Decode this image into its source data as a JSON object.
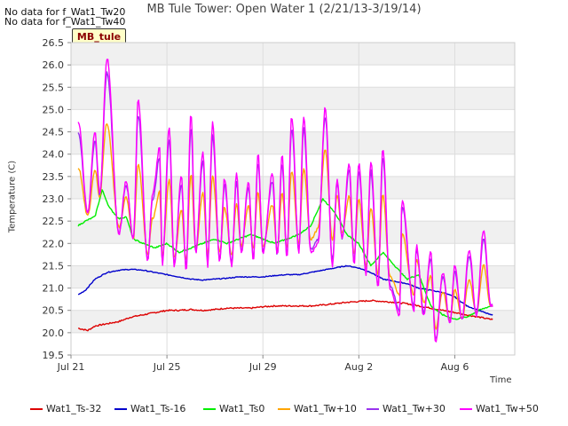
{
  "notices": [
    "No data for f_Wat1_Tw20",
    "No data for f_Wat1_Tw40"
  ],
  "site_tag": "MB_tule",
  "chart_data": {
    "type": "line",
    "title": "MB Tule Tower: Open Water 1 (2/21/13-3/19/14)",
    "xlabel": "Time",
    "ylabel": "Temperature (C)",
    "ylim": [
      19.5,
      26.5
    ],
    "xlim": [
      0,
      18.5
    ],
    "x_unit": "days since Jul 21",
    "y_ticks": [
      "19.5",
      "20.0",
      "20.5",
      "21.0",
      "21.5",
      "22.0",
      "22.5",
      "23.0",
      "23.5",
      "24.0",
      "24.5",
      "25.0",
      "25.5",
      "26.0",
      "26.5"
    ],
    "x_ticks": [
      {
        "label": "Jul 21",
        "day": 0
      },
      {
        "label": "Jul 25",
        "day": 4
      },
      {
        "label": "Jul 29",
        "day": 8
      },
      {
        "label": "Aug 2",
        "day": 12
      },
      {
        "label": "Aug 6",
        "day": 16
      }
    ],
    "grid": true,
    "legend_placement": "bottom",
    "series": [
      {
        "name": "Wat1_Ts-32",
        "color": "#dd0000",
        "values": [
          [
            0.3,
            20.1
          ],
          [
            0.7,
            20.05
          ],
          [
            1,
            20.15
          ],
          [
            1.5,
            20.2
          ],
          [
            2,
            20.25
          ],
          [
            2.5,
            20.35
          ],
          [
            3,
            20.4
          ],
          [
            3.5,
            20.45
          ],
          [
            4,
            20.5
          ],
          [
            4.5,
            20.5
          ],
          [
            5,
            20.52
          ],
          [
            5.5,
            20.5
          ],
          [
            6,
            20.52
          ],
          [
            6.5,
            20.55
          ],
          [
            7,
            20.55
          ],
          [
            7.5,
            20.55
          ],
          [
            8,
            20.58
          ],
          [
            8.5,
            20.6
          ],
          [
            9,
            20.6
          ],
          [
            9.5,
            20.6
          ],
          [
            10,
            20.6
          ],
          [
            10.5,
            20.62
          ],
          [
            11,
            20.65
          ],
          [
            11.5,
            20.68
          ],
          [
            12,
            20.7
          ],
          [
            12.5,
            20.72
          ],
          [
            13,
            20.7
          ],
          [
            13.5,
            20.68
          ],
          [
            14,
            20.65
          ],
          [
            14.5,
            20.6
          ],
          [
            15,
            20.55
          ],
          [
            15.5,
            20.5
          ],
          [
            16,
            20.45
          ],
          [
            16.5,
            20.4
          ],
          [
            17,
            20.35
          ],
          [
            17.5,
            20.3
          ]
        ]
      },
      {
        "name": "Wat1_Ts-16",
        "color": "#0000cc",
        "values": [
          [
            0.3,
            20.85
          ],
          [
            0.6,
            20.95
          ],
          [
            1,
            21.2
          ],
          [
            1.5,
            21.35
          ],
          [
            2,
            21.4
          ],
          [
            2.5,
            21.42
          ],
          [
            3,
            21.4
          ],
          [
            3.5,
            21.35
          ],
          [
            4,
            21.3
          ],
          [
            4.5,
            21.25
          ],
          [
            5,
            21.2
          ],
          [
            5.5,
            21.18
          ],
          [
            6,
            21.2
          ],
          [
            6.5,
            21.22
          ],
          [
            7,
            21.25
          ],
          [
            7.5,
            21.25
          ],
          [
            8,
            21.25
          ],
          [
            8.5,
            21.28
          ],
          [
            9,
            21.3
          ],
          [
            9.5,
            21.3
          ],
          [
            10,
            21.35
          ],
          [
            10.5,
            21.4
          ],
          [
            11,
            21.45
          ],
          [
            11.5,
            21.5
          ],
          [
            12,
            21.45
          ],
          [
            12.5,
            21.35
          ],
          [
            13,
            21.2
          ],
          [
            13.5,
            21.15
          ],
          [
            14,
            21.1
          ],
          [
            14.5,
            21.0
          ],
          [
            15,
            20.95
          ],
          [
            15.5,
            20.9
          ],
          [
            16,
            20.8
          ],
          [
            16.5,
            20.6
          ],
          [
            17,
            20.5
          ],
          [
            17.5,
            20.4
          ]
        ]
      },
      {
        "name": "Wat1_Ts0",
        "color": "#00ee00",
        "values": [
          [
            0.3,
            22.4
          ],
          [
            0.6,
            22.5
          ],
          [
            1,
            22.6
          ],
          [
            1.3,
            23.2
          ],
          [
            1.6,
            22.8
          ],
          [
            2,
            22.55
          ],
          [
            2.3,
            22.6
          ],
          [
            2.6,
            22.1
          ],
          [
            3,
            22.0
          ],
          [
            3.5,
            21.9
          ],
          [
            4,
            22.0
          ],
          [
            4.5,
            21.8
          ],
          [
            5,
            21.9
          ],
          [
            5.5,
            22.0
          ],
          [
            6,
            22.1
          ],
          [
            6.5,
            22.0
          ],
          [
            7,
            22.1
          ],
          [
            7.5,
            22.2
          ],
          [
            8,
            22.1
          ],
          [
            8.5,
            22.0
          ],
          [
            9,
            22.1
          ],
          [
            9.5,
            22.2
          ],
          [
            10,
            22.4
          ],
          [
            10.5,
            23.0
          ],
          [
            11,
            22.7
          ],
          [
            11.5,
            22.2
          ],
          [
            12,
            22.0
          ],
          [
            12.5,
            21.5
          ],
          [
            13,
            21.8
          ],
          [
            13.5,
            21.5
          ],
          [
            14,
            21.2
          ],
          [
            14.5,
            21.3
          ],
          [
            15,
            20.6
          ],
          [
            15.5,
            20.4
          ],
          [
            16,
            20.3
          ],
          [
            16.5,
            20.35
          ],
          [
            17,
            20.5
          ],
          [
            17.5,
            20.6
          ]
        ]
      },
      {
        "name": "Wat1_Tw+10",
        "color": "#ffa500",
        "amp": 0.55
      },
      {
        "name": "Wat1_Tw+30",
        "color": "#9933ee",
        "amp": 0.9
      },
      {
        "name": "Wat1_Tw+50",
        "color": "#ff00ff",
        "amp": 1.0
      }
    ],
    "diurnal_peaks": [
      [
        0.3,
        24.75
      ],
      [
        1,
        24.5
      ],
      [
        1.5,
        26.15
      ],
      [
        2.3,
        23.4
      ],
      [
        2.8,
        25.2
      ],
      [
        3.4,
        23.1
      ],
      [
        3.7,
        24.15
      ],
      [
        4.1,
        24.6
      ],
      [
        4.6,
        23.5
      ],
      [
        5.0,
        24.9
      ],
      [
        5.5,
        24.05
      ],
      [
        5.9,
        24.7
      ],
      [
        6.4,
        23.45
      ],
      [
        6.9,
        23.55
      ],
      [
        7.4,
        23.4
      ],
      [
        7.8,
        24.0
      ],
      [
        8.4,
        23.55
      ],
      [
        8.8,
        24.0
      ],
      [
        9.2,
        24.85
      ],
      [
        9.7,
        24.85
      ],
      [
        10.6,
        25.05
      ],
      [
        11.1,
        23.45
      ],
      [
        11.6,
        23.8
      ],
      [
        12.0,
        23.8
      ],
      [
        12.5,
        23.85
      ],
      [
        13.0,
        24.15
      ],
      [
        13.8,
        23.0
      ],
      [
        14.4,
        21.95
      ],
      [
        15.0,
        21.8
      ],
      [
        15.5,
        21.35
      ],
      [
        16.0,
        21.5
      ],
      [
        16.6,
        21.85
      ],
      [
        17.2,
        22.3
      ]
    ],
    "diurnal_troughs": [
      [
        0.7,
        22.7
      ],
      [
        1.2,
        23.1
      ],
      [
        2.0,
        22.2
      ],
      [
        2.6,
        22.1
      ],
      [
        3.2,
        21.6
      ],
      [
        3.8,
        21.5
      ],
      [
        4.3,
        21.5
      ],
      [
        4.8,
        21.4
      ],
      [
        5.2,
        21.8
      ],
      [
        5.7,
        21.5
      ],
      [
        6.2,
        21.6
      ],
      [
        6.7,
        21.5
      ],
      [
        7.1,
        21.8
      ],
      [
        7.6,
        21.6
      ],
      [
        8.0,
        21.8
      ],
      [
        8.6,
        21.7
      ],
      [
        9.0,
        21.7
      ],
      [
        9.5,
        21.8
      ],
      [
        10.0,
        21.8
      ],
      [
        10.3,
        22.0
      ],
      [
        10.9,
        21.5
      ],
      [
        11.3,
        22.1
      ],
      [
        11.8,
        21.5
      ],
      [
        12.3,
        21.3
      ],
      [
        12.8,
        21.0
      ],
      [
        13.3,
        21.0
      ],
      [
        13.7,
        20.4
      ],
      [
        14.3,
        20.5
      ],
      [
        14.7,
        20.4
      ],
      [
        15.2,
        19.75
      ],
      [
        15.8,
        20.2
      ],
      [
        16.3,
        20.3
      ],
      [
        16.9,
        20.4
      ],
      [
        17.5,
        20.6
      ]
    ]
  }
}
